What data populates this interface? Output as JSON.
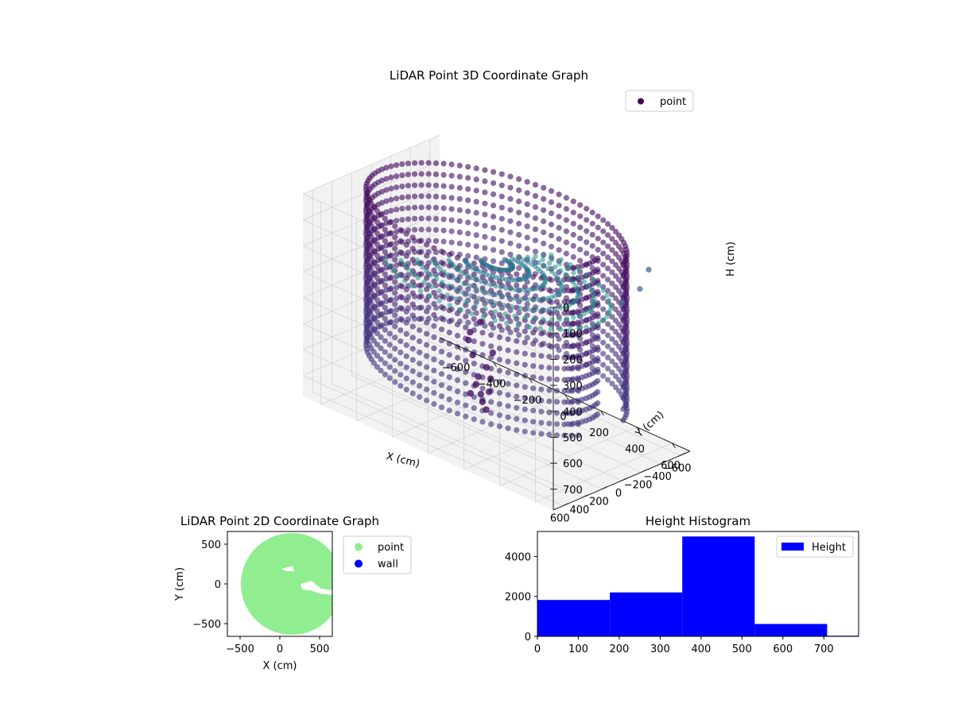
{
  "chart_data": [
    {
      "type": "scatter",
      "title": "LiDAR Point 3D Coordinate Graph",
      "xlabel": "X (cm)",
      "ylabel": "Y (cm)",
      "zlabel": "H (cm)",
      "x_ticks": [
        -600,
        -400,
        -200,
        0,
        200,
        400,
        600
      ],
      "y_ticks": [
        -600,
        -400,
        -200,
        0,
        200,
        400,
        600
      ],
      "z_ticks": [
        0,
        100,
        200,
        300,
        400,
        500,
        600,
        700
      ],
      "xlim": [
        -700,
        700
      ],
      "ylim": [
        -700,
        700
      ],
      "zlim": [
        0,
        780
      ],
      "z_inverted": true,
      "legend": [
        "point"
      ],
      "legend_placement": "top-right",
      "colormap": "viridis",
      "grid": true,
      "marker_color": "#440154",
      "pane_color": "#f2f2f2",
      "grid_color": "#d4d4d4"
    },
    {
      "type": "scatter",
      "title": "LiDAR Point 2D Coordinate Graph",
      "xlabel": "X (cm)",
      "ylabel": "Y (cm)",
      "x_ticks": [
        -500,
        0,
        500
      ],
      "y_ticks": [
        -500,
        0,
        500
      ],
      "xlim": [
        -660,
        660
      ],
      "ylim": [
        -660,
        660
      ],
      "legend_placement": "outside right",
      "series": [
        {
          "name": "point",
          "color": "#90ee90",
          "shape": "disk",
          "center": [
            150,
            0
          ],
          "radius": 640
        },
        {
          "name": "wall",
          "color": "#0000ff",
          "values": []
        }
      ]
    },
    {
      "type": "bar",
      "title": "Height Histogram",
      "xlabel": "",
      "ylabel": "",
      "x_ticks": [
        0,
        100,
        200,
        300,
        400,
        500,
        600,
        700
      ],
      "y_ticks": [
        0,
        2000,
        4000
      ],
      "xlim": [
        0,
        785
      ],
      "ylim": [
        0,
        5250
      ],
      "legend": [
        "Height"
      ],
      "legend_placement": "top-right",
      "color": "#0000ff",
      "bins": [
        {
          "start": 0,
          "end": 177,
          "count": 1820
        },
        {
          "start": 177,
          "end": 354,
          "count": 2200
        },
        {
          "start": 354,
          "end": 531,
          "count": 5000
        },
        {
          "start": 531,
          "end": 708,
          "count": 620
        },
        {
          "start": 708,
          "end": 785,
          "count": 30
        }
      ]
    }
  ]
}
